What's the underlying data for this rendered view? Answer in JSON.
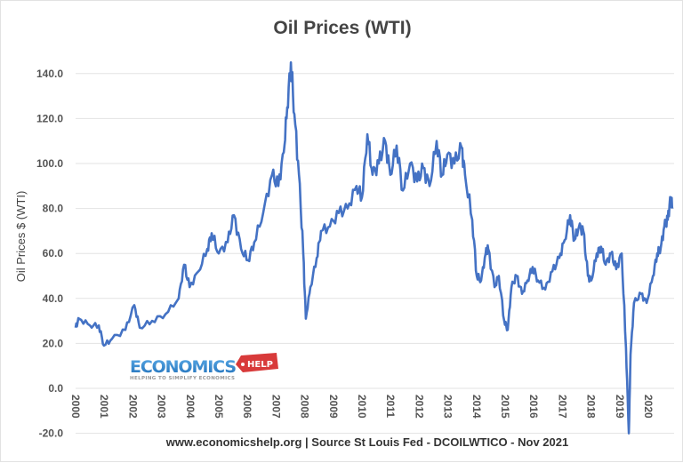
{
  "chart_data": {
    "type": "line",
    "title": "Oil Prices (WTI)",
    "xlabel": "",
    "ylabel": "Oil Prices $ (WTI)",
    "ylim": [
      -20,
      150
    ],
    "yticks": [
      "-20.0",
      "0.0",
      "20.0",
      "40.0",
      "60.0",
      "80.0",
      "100.0",
      "120.0",
      "140.0"
    ],
    "ytick_values": [
      -20,
      0,
      20,
      40,
      60,
      80,
      100,
      120,
      140
    ],
    "xticks": [
      "2000",
      "2001",
      "2002",
      "2003",
      "2004",
      "2005",
      "2006",
      "2007",
      "2008",
      "2009",
      "2010",
      "2011",
      "2012",
      "2013",
      "2014",
      "2015",
      "2016",
      "2017",
      "2018",
      "2019",
      "2020"
    ],
    "xlim": [
      2000,
      2020.9
    ],
    "grid": true,
    "line_color": "#4472C4",
    "series": [
      {
        "x": [
          2000.0,
          2000.12,
          2000.5,
          2000.81,
          2000.99,
          2001.27,
          2001.74,
          2002.05,
          2002.24,
          2002.67,
          2003.14,
          2003.6,
          2003.79,
          2003.98,
          2004.29,
          2004.6,
          2004.75,
          2005.0,
          2005.31,
          2005.53,
          2005.78,
          2006.02,
          2006.24,
          2006.55,
          2006.86,
          2007.08,
          2007.27,
          2007.39,
          2007.52,
          2007.64,
          2007.8,
          2007.95,
          2008.04,
          2008.2,
          2008.42,
          2008.57,
          2008.88,
          2009.19,
          2009.5,
          2009.81,
          2010.0,
          2010.19,
          2010.37,
          2010.59,
          2010.81,
          2010.99,
          2011.21,
          2011.43,
          2011.68,
          2011.93,
          2012.14,
          2012.36,
          2012.61,
          2012.8,
          2012.98,
          2013.23,
          2013.48,
          2013.6,
          2013.85,
          2014.01,
          2014.16,
          2014.32,
          2014.41,
          2014.63,
          2014.78,
          2014.97,
          2015.09,
          2015.22,
          2015.4,
          2015.59,
          2015.78,
          2015.96,
          2016.15,
          2016.4,
          2016.65,
          2016.89,
          2017.08,
          2017.27,
          2017.42,
          2017.58,
          2017.73,
          2017.89,
          2018.01,
          2018.2,
          2018.35,
          2018.51,
          2018.7,
          2018.88,
          2019.07,
          2019.22,
          2019.32,
          2019.38,
          2019.5,
          2019.75,
          2019.94,
          2020.16,
          2020.31,
          2020.43,
          2020.56,
          2020.68,
          2020.78,
          2020.84
        ],
        "y": [
          27,
          31,
          28,
          28,
          19,
          22,
          26,
          37,
          27,
          30,
          33,
          40,
          55,
          45,
          52,
          62,
          69,
          60,
          65,
          77,
          62,
          57,
          65,
          78,
          95,
          90,
          105,
          125,
          145,
          122,
          95,
          60,
          31,
          45,
          58,
          70,
          72,
          78,
          80,
          90,
          85,
          113,
          95,
          100,
          110,
          95,
          108,
          88,
          100,
          92,
          98,
          90,
          110,
          95,
          104,
          100,
          107,
          95,
          75,
          50,
          48,
          60,
          62,
          45,
          50,
          30,
          26,
          45,
          50,
          42,
          48,
          54,
          48,
          44,
          52,
          58,
          66,
          77,
          66,
          72,
          70,
          50,
          48,
          60,
          63,
          55,
          60,
          53,
          60,
          18,
          -20,
          15,
          38,
          42,
          38,
          50,
          60,
          62,
          72,
          75,
          85,
          80
        ]
      }
    ]
  },
  "footer": "www.economicshelp.org | Source St Louis Fed - DCOILWTICO - Nov 2021",
  "logo": {
    "main": "ECONOMICS",
    "tag": "HELP",
    "tagline": "HELPING TO SIMPLIFY ECONOMICS"
  }
}
